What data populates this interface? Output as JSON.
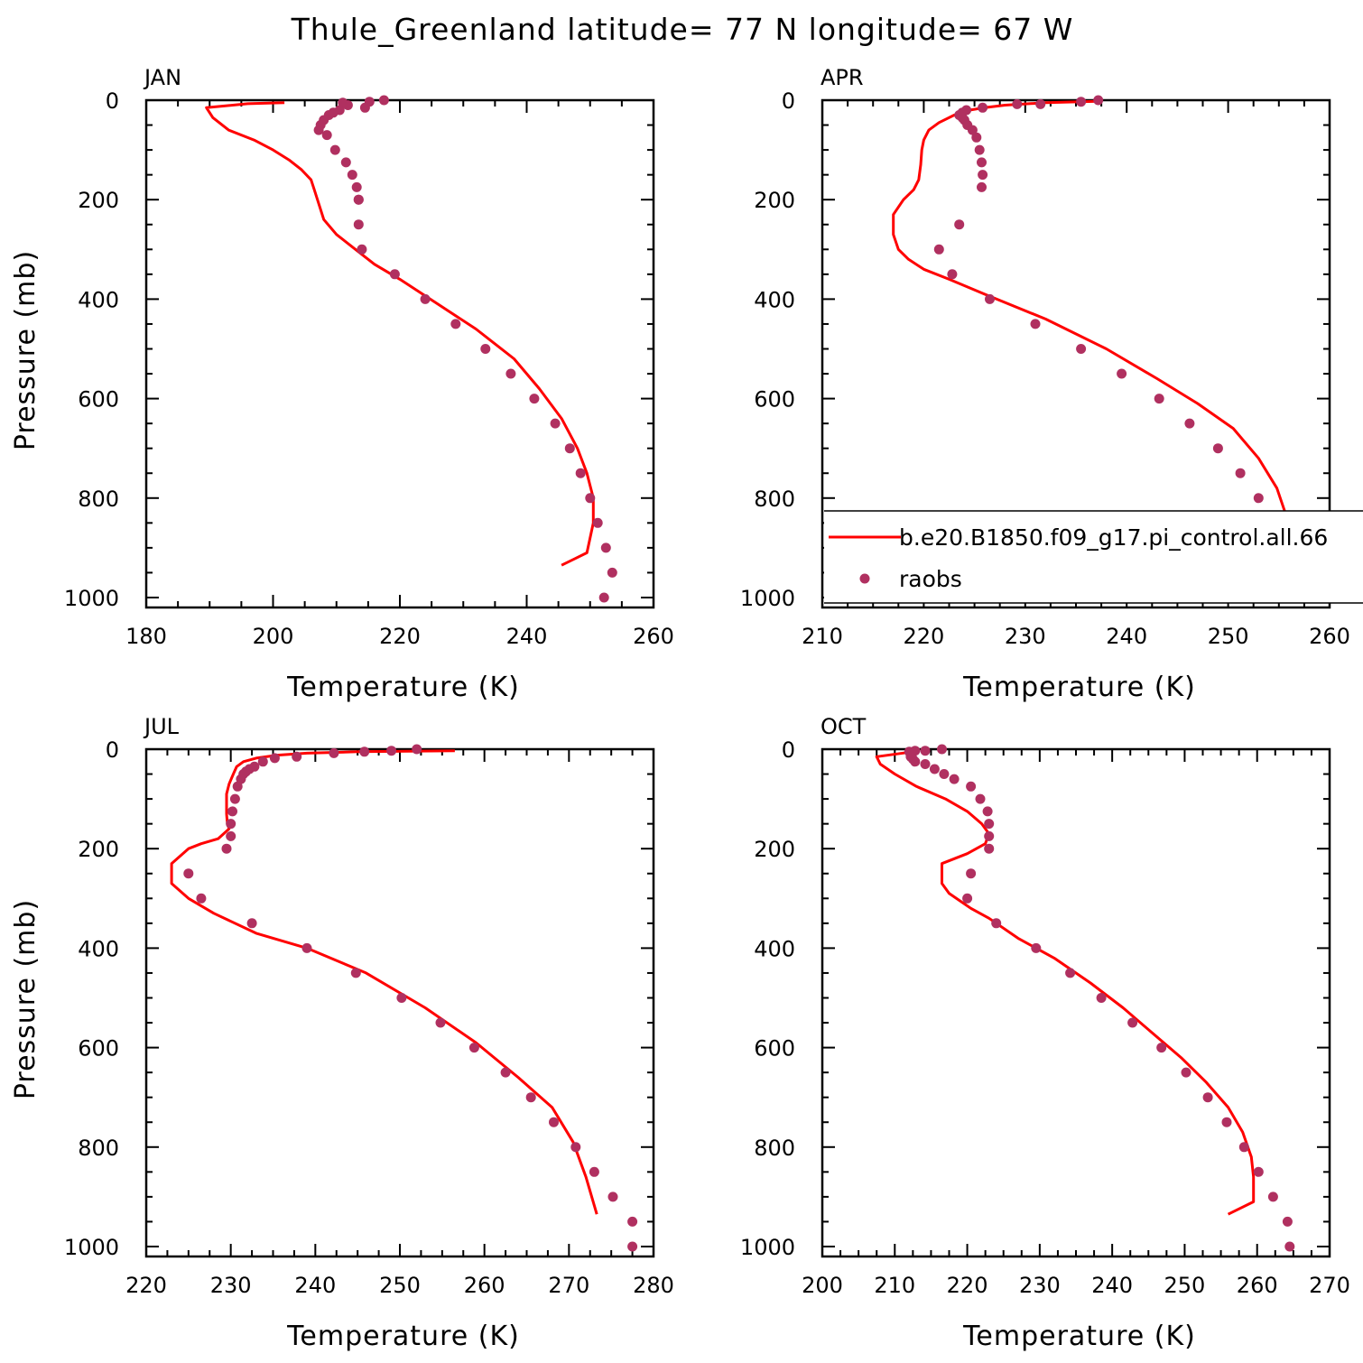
{
  "title": "Thule_Greenland  latitude= 77 N longitude= 67 W",
  "legend": {
    "model_label": "b.e20.B1850.f09_g17.pi_control.all.66",
    "obs_label": "raobs"
  },
  "colors": {
    "model_line": "#ff0000",
    "obs_marker": "#b03060",
    "axis": "#000000"
  },
  "chart_data": [
    {
      "type": "line",
      "label": "JAN",
      "xlabel": "Temperature (K)",
      "ylabel": "Pressure (mb)",
      "xlim": [
        180,
        260
      ],
      "ylim": [
        1020,
        0
      ],
      "xticks": [
        180,
        200,
        220,
        240,
        260
      ],
      "yticks": [
        0,
        200,
        400,
        600,
        800,
        1000
      ],
      "model": {
        "x": [
          201.8,
          196,
          189.5,
          190.5,
          193,
          197,
          200,
          202.5,
          204.5,
          206,
          206.5,
          207,
          208,
          210,
          213,
          216,
          220,
          226,
          232,
          238,
          242,
          245.5,
          248,
          249.5,
          250.5,
          250.5,
          249.5,
          245.5
        ],
        "y": [
          5,
          7,
          15,
          35,
          60,
          80,
          100,
          120,
          140,
          160,
          180,
          200,
          240,
          270,
          300,
          330,
          360,
          410,
          460,
          520,
          580,
          640,
          700,
          750,
          800,
          850,
          910,
          935
        ]
      },
      "obs": {
        "x": [
          217.5,
          215.2,
          214.5,
          211.8,
          211.0,
          210.5,
          209.5,
          208.8,
          208.0,
          207.5,
          207.2,
          208.5,
          209.8,
          211.5,
          212.5,
          213.2,
          213.5,
          213.5,
          213.5,
          214.0,
          219.2,
          224.0,
          228.8,
          233.5,
          237.5,
          241.2,
          244.5,
          246.8,
          248.5,
          250.0,
          251.2,
          252.5,
          253.5,
          252.2
        ],
        "y": [
          0,
          3,
          15,
          10,
          5,
          20,
          25,
          30,
          40,
          50,
          60,
          70,
          100,
          125,
          150,
          175,
          200,
          200,
          250,
          300,
          350,
          400,
          450,
          500,
          550,
          600,
          650,
          700,
          750,
          800,
          850,
          900,
          950,
          1000
        ]
      }
    },
    {
      "type": "line",
      "label": "APR",
      "xlabel": "Temperature (K)",
      "ylabel": "",
      "xlim": [
        210,
        260
      ],
      "ylim": [
        1020,
        0
      ],
      "xticks": [
        210,
        220,
        230,
        240,
        250,
        260
      ],
      "yticks": [
        0,
        200,
        400,
        600,
        800,
        1000
      ],
      "model": {
        "x": [
          237.5,
          232,
          228,
          226,
          224.5,
          223,
          221.5,
          220.5,
          220,
          219.8,
          219.7,
          219.5,
          219,
          218,
          217,
          217,
          217.5,
          218.5,
          220,
          222.5,
          226,
          232,
          238,
          243,
          247,
          250.5,
          253,
          254.8,
          255.8,
          256.2,
          256,
          253.5
        ],
        "y": [
          2,
          5,
          10,
          15,
          20,
          30,
          45,
          60,
          80,
          100,
          130,
          160,
          180,
          200,
          230,
          270,
          300,
          320,
          340,
          360,
          390,
          440,
          500,
          560,
          610,
          660,
          720,
          780,
          840,
          900,
          930,
          945
        ]
      },
      "obs": {
        "x": [
          237.2,
          235.5,
          231.5,
          229.2,
          225.8,
          224.2,
          223.8,
          223.5,
          223.8,
          224.0,
          224.3,
          224.8,
          225.2,
          225.5,
          225.7,
          225.8,
          225.7,
          223.5,
          221.5,
          222.8,
          226.5,
          231.0,
          235.5,
          239.5,
          243.2,
          246.2,
          249.0,
          251.2,
          253.0,
          254.2,
          255.8,
          257.0,
          257.0
        ],
        "y": [
          0,
          3,
          8,
          8,
          15,
          20,
          25,
          30,
          35,
          40,
          50,
          60,
          75,
          100,
          125,
          150,
          175,
          250,
          300,
          350,
          400,
          450,
          500,
          550,
          600,
          650,
          700,
          750,
          800,
          850,
          900,
          950,
          1000
        ]
      }
    },
    {
      "type": "line",
      "label": "JUL",
      "xlabel": "Temperature (K)",
      "ylabel": "Pressure (mb)",
      "xlim": [
        220,
        280
      ],
      "ylim": [
        1020,
        0
      ],
      "xticks": [
        220,
        230,
        240,
        250,
        260,
        270,
        280
      ],
      "yticks": [
        0,
        200,
        400,
        600,
        800,
        1000
      ],
      "model": {
        "x": [
          256.5,
          245,
          239,
          235.5,
          233,
          231.5,
          230.7,
          230.3,
          229.8,
          229.5,
          229.5,
          229.5,
          229.6,
          229.8,
          228.5,
          226.5,
          225,
          223,
          223,
          225,
          228,
          233,
          239,
          246,
          253,
          259,
          264,
          268,
          270.5,
          272,
          273.3
        ],
        "y": [
          3,
          5,
          8,
          12,
          18,
          25,
          35,
          50,
          70,
          90,
          110,
          130,
          150,
          160,
          180,
          190,
          200,
          230,
          270,
          300,
          330,
          370,
          400,
          450,
          520,
          590,
          660,
          720,
          790,
          860,
          935
        ]
      },
      "obs": {
        "x": [
          252.0,
          249.0,
          245.8,
          242.2,
          237.8,
          235.2,
          233.8,
          232.8,
          232.2,
          231.8,
          231.5,
          231.2,
          230.8,
          230.5,
          230.2,
          230.0,
          230.0,
          229.5,
          225.0,
          226.5,
          232.5,
          239.0,
          244.8,
          250.2,
          254.8,
          258.8,
          262.5,
          265.5,
          268.2,
          270.8,
          273.0,
          275.2,
          277.5,
          277.5
        ],
        "y": [
          0,
          3,
          5,
          8,
          15,
          18,
          25,
          35,
          40,
          45,
          50,
          60,
          75,
          100,
          125,
          150,
          175,
          200,
          250,
          300,
          350,
          400,
          450,
          500,
          550,
          600,
          650,
          700,
          750,
          800,
          850,
          900,
          950,
          1000
        ]
      }
    },
    {
      "type": "line",
      "label": "OCT",
      "xlabel": "Temperature (K)",
      "ylabel": "",
      "xlim": [
        200,
        270
      ],
      "ylim": [
        1020,
        0
      ],
      "xticks": [
        200,
        210,
        220,
        230,
        240,
        250,
        260,
        270
      ],
      "yticks": [
        0,
        200,
        400,
        600,
        800,
        1000
      ],
      "model": {
        "x": [
          212.5,
          207.5,
          208,
          210,
          213,
          217,
          220,
          222,
          223,
          222.5,
          220,
          216.5,
          216.5,
          217.5,
          219,
          220.5,
          223,
          227,
          232,
          237,
          241.5,
          245.5,
          249.5,
          253,
          256,
          258,
          259.2,
          259.5,
          259.5,
          256
        ],
        "y": [
          5,
          15,
          30,
          50,
          75,
          100,
          125,
          150,
          170,
          190,
          210,
          230,
          270,
          290,
          305,
          320,
          340,
          380,
          420,
          470,
          520,
          570,
          620,
          670,
          720,
          770,
          820,
          860,
          910,
          935
        ]
      },
      "obs": {
        "x": [
          216.5,
          214.2,
          212.8,
          212.0,
          212.2,
          212.5,
          212.8,
          214.2,
          215.5,
          216.8,
          218.2,
          220.5,
          221.8,
          222.8,
          223.0,
          223.0,
          223.0,
          220.5,
          220.0,
          224.0,
          229.5,
          234.2,
          238.5,
          242.8,
          246.8,
          250.2,
          253.2,
          255.8,
          258.2,
          260.2,
          262.2,
          264.2,
          264.5
        ],
        "y": [
          0,
          3,
          3,
          5,
          15,
          20,
          25,
          30,
          40,
          50,
          60,
          75,
          100,
          125,
          150,
          175,
          200,
          250,
          300,
          350,
          400,
          450,
          500,
          550,
          600,
          650,
          700,
          750,
          800,
          850,
          900,
          950,
          1000
        ]
      }
    }
  ]
}
